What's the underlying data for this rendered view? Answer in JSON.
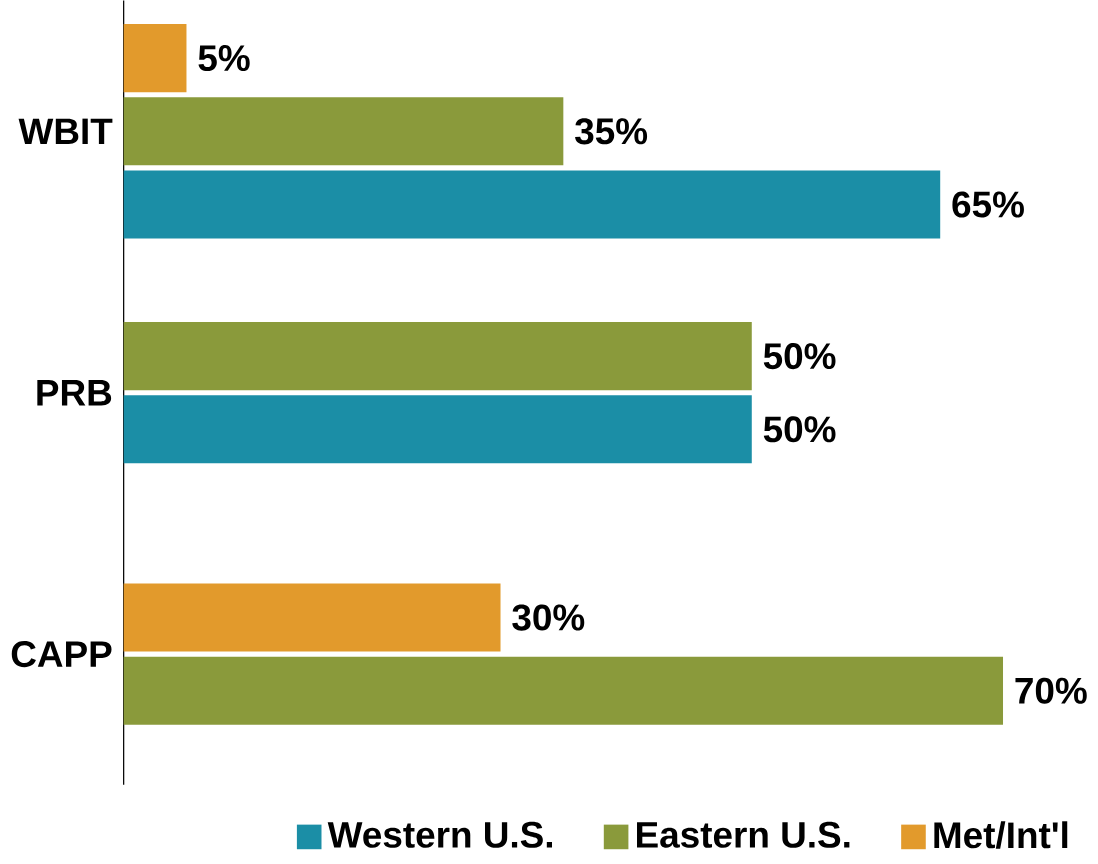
{
  "chart_data": {
    "type": "bar",
    "orientation": "horizontal",
    "categories": [
      "WBIT",
      "PRB",
      "CAPP"
    ],
    "series": [
      {
        "name": "Western U.S.",
        "color": "#1b8ea6",
        "values": [
          65,
          50,
          null
        ],
        "value_labels": [
          "65%",
          "50%",
          null
        ]
      },
      {
        "name": "Eastern U.S.",
        "color": "#8a9a3b",
        "values": [
          35,
          50,
          70
        ],
        "value_labels": [
          "35%",
          "50%",
          "70%"
        ]
      },
      {
        "name": "Met/Int'l",
        "color": "#e29a2c",
        "values": [
          5,
          null,
          30
        ],
        "value_labels": [
          "5%",
          null,
          "30%"
        ]
      }
    ],
    "legend": "bottom"
  }
}
